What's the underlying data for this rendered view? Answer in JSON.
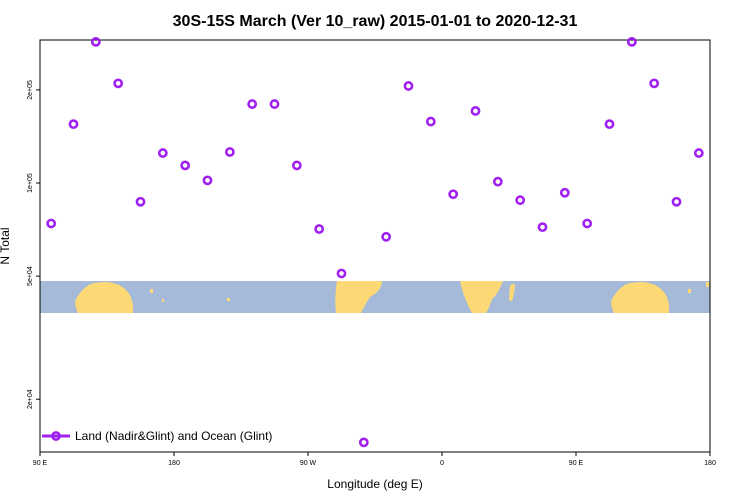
{
  "chart_data": {
    "type": "scatter",
    "title": "30S-15S March (Ver 10_raw)   2015-01-01 to 2020-12-31",
    "xlabel": "Longitude (deg E)",
    "ylabel": "N Total",
    "y_scale": "log",
    "xlim": [
      90,
      540
    ],
    "ylim": [
      13500,
      290000
    ],
    "x_ticks": [
      {
        "value": 90,
        "label": "90 E"
      },
      {
        "value": 180,
        "label": "180"
      },
      {
        "value": 270,
        "label": "90 W"
      },
      {
        "value": 360,
        "label": "0"
      },
      {
        "value": 450,
        "label": "90 E"
      },
      {
        "value": 540,
        "label": "180"
      }
    ],
    "y_ticks": [
      {
        "value": 20000,
        "label": "2e+04"
      },
      {
        "value": 50000,
        "label": "5e+04"
      },
      {
        "value": 100000,
        "label": "1e+05"
      },
      {
        "value": 200000,
        "label": "2e+05"
      }
    ],
    "map_band_range": [
      38000,
      50000
    ],
    "series": [
      {
        "name": "Land (Nadir&Glint) and Ocean (Glint)",
        "color": "#a020f0",
        "marker": "open-circle",
        "points": [
          {
            "x": 97.5,
            "y": 74000
          },
          {
            "x": 112.5,
            "y": 155000
          },
          {
            "x": 127.5,
            "y": 286000
          },
          {
            "x": 142.5,
            "y": 210000
          },
          {
            "x": 157.5,
            "y": 87000
          },
          {
            "x": 172.5,
            "y": 125000
          },
          {
            "x": 187.5,
            "y": 114000
          },
          {
            "x": 202.5,
            "y": 102000
          },
          {
            "x": 217.5,
            "y": 126000
          },
          {
            "x": 232.5,
            "y": 180000
          },
          {
            "x": 247.5,
            "y": 180000
          },
          {
            "x": 262.5,
            "y": 114000
          },
          {
            "x": 277.5,
            "y": 71000
          },
          {
            "x": 292.5,
            "y": 51000
          },
          {
            "x": 307.5,
            "y": 14500
          },
          {
            "x": 322.5,
            "y": 67000
          },
          {
            "x": 337.5,
            "y": 206000
          },
          {
            "x": 352.5,
            "y": 158000
          },
          {
            "x": 367.5,
            "y": 92000
          },
          {
            "x": 382.5,
            "y": 171000
          },
          {
            "x": 397.5,
            "y": 101000
          },
          {
            "x": 412.5,
            "y": 88000
          },
          {
            "x": 427.5,
            "y": 72000
          },
          {
            "x": 442.5,
            "y": 93000
          },
          {
            "x": 457.5,
            "y": 74000
          },
          {
            "x": 472.5,
            "y": 155000
          },
          {
            "x": 487.5,
            "y": 286000
          },
          {
            "x": 502.5,
            "y": 210000
          },
          {
            "x": 517.5,
            "y": 87000
          },
          {
            "x": 532.5,
            "y": 125000
          }
        ]
      }
    ]
  }
}
